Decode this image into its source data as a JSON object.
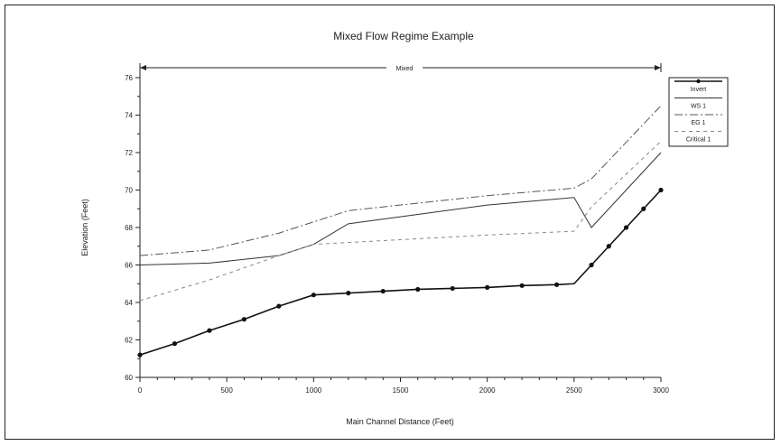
{
  "chart_data": {
    "type": "line",
    "title": "Mixed Flow Regime Example",
    "xlabel": "Main Channel Distance (Feet)",
    "ylabel": "Elevation (Feet)",
    "xlim": [
      0,
      3000
    ],
    "ylim": [
      60,
      76
    ],
    "xticks": [
      0,
      500,
      1000,
      1500,
      2000,
      2500,
      3000
    ],
    "yticks": [
      60,
      62,
      64,
      66,
      68,
      70,
      72,
      74,
      76
    ],
    "regime_label": "Mixed",
    "regime_range": [
      0,
      3000
    ],
    "legend_position": "right",
    "series": [
      {
        "name": "Invert",
        "style": "solid-markers",
        "x": [
          0,
          200,
          400,
          600,
          800,
          1000,
          1200,
          1400,
          1600,
          1800,
          2000,
          2200,
          2400,
          2500,
          2600,
          2700,
          2800,
          2900,
          3000
        ],
        "y": [
          61.2,
          61.8,
          62.5,
          63.1,
          63.8,
          64.4,
          64.5,
          64.6,
          64.7,
          64.75,
          64.8,
          64.9,
          64.95,
          65.0,
          66.0,
          67.0,
          68.0,
          69.0,
          70.0
        ]
      },
      {
        "name": "WS 1",
        "style": "solid",
        "x": [
          0,
          400,
          800,
          1000,
          1200,
          1600,
          2000,
          2500,
          2600,
          3000
        ],
        "y": [
          66.0,
          66.1,
          66.5,
          67.1,
          68.2,
          68.7,
          69.2,
          69.6,
          68.0,
          72.0
        ]
      },
      {
        "name": "EG 1",
        "style": "dash-dot",
        "x": [
          0,
          400,
          800,
          1000,
          1200,
          1600,
          2000,
          2500,
          2600,
          3000
        ],
        "y": [
          66.5,
          66.8,
          67.7,
          68.3,
          68.9,
          69.3,
          69.7,
          70.1,
          70.6,
          74.5
        ]
      },
      {
        "name": "Critical 1",
        "style": "dashed",
        "x": [
          0,
          400,
          800,
          1000,
          1200,
          1600,
          2000,
          2500,
          2600,
          3000
        ],
        "y": [
          64.1,
          65.2,
          66.5,
          67.1,
          67.2,
          67.4,
          67.6,
          67.8,
          69.1,
          72.6
        ]
      }
    ]
  }
}
